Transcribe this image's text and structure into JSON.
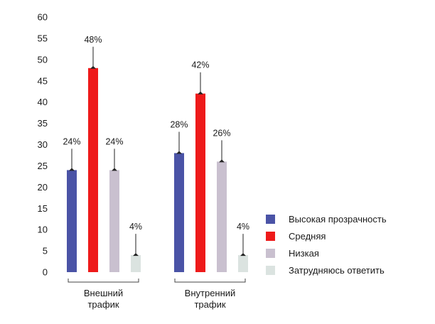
{
  "chart_data": {
    "type": "bar",
    "categories": [
      "Внешний трафик",
      "Внутренний трафик"
    ],
    "category_label_lines": [
      [
        "Внешний",
        "трафик"
      ],
      [
        "Внутренний",
        "трафик"
      ]
    ],
    "series": [
      {
        "name": "Высокая прозрачность",
        "values": [
          24,
          28
        ],
        "labels": [
          "24%",
          "28%"
        ],
        "color": "#4a53a6"
      },
      {
        "name": "Средняя",
        "values": [
          48,
          42
        ],
        "labels": [
          "48%",
          "42%"
        ],
        "color": "#ee1a1a"
      },
      {
        "name": "Низкая",
        "values": [
          24,
          26
        ],
        "labels": [
          "24%",
          "26%"
        ],
        "color": "#c9c0cf"
      },
      {
        "name": "Затрудняюсь ответить",
        "values": [
          4,
          4
        ],
        "labels": [
          "4%",
          "4%"
        ],
        "color": "#dbe3e0"
      }
    ],
    "ylim": [
      0,
      60
    ],
    "yticks": [
      0,
      5,
      10,
      15,
      20,
      25,
      30,
      35,
      40,
      45,
      50,
      55,
      60
    ],
    "legend_position": "right",
    "grid": false
  }
}
